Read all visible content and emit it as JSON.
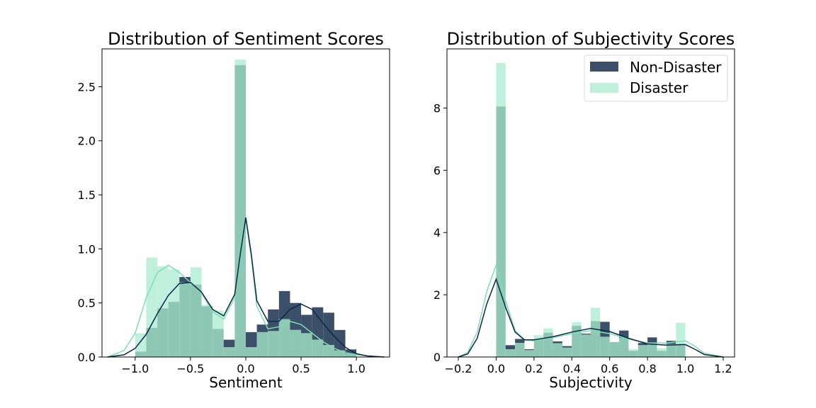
{
  "colors": {
    "non_disaster": "#0a2848",
    "disaster": "#7fdcb4",
    "overlap_fill": "#8ec7b3",
    "legend_non_disaster": "#3b5068",
    "legend_disaster": "#bff0db"
  },
  "chart_data": [
    {
      "type": "histogram",
      "title": "Distribution of Sentiment Scores",
      "xlabel": "Sentiment",
      "ylabel": "",
      "xlim": [
        -1.3,
        1.3
      ],
      "ylim": [
        0,
        2.85
      ],
      "xticks": [
        -1.0,
        -0.5,
        0.0,
        0.5,
        1.0
      ],
      "xtick_labels": [
        "−1.0",
        "−0.5",
        "0.0",
        "0.5",
        "1.0"
      ],
      "yticks": [
        0.0,
        0.5,
        1.0,
        1.5,
        2.0,
        2.5
      ],
      "ytick_labels": [
        "0.0",
        "0.5",
        "1.0",
        "1.5",
        "2.0",
        "2.5"
      ],
      "bin_edges": [
        -1.0,
        -0.9,
        -0.8,
        -0.7,
        -0.6,
        -0.5,
        -0.4,
        -0.3,
        -0.2,
        -0.1,
        0.0,
        0.1,
        0.2,
        0.3,
        0.4,
        0.5,
        0.6,
        0.7,
        0.8,
        0.9,
        1.0
      ],
      "series": [
        {
          "name": "Non-Disaster",
          "values": [
            0.05,
            0.27,
            0.45,
            0.51,
            0.74,
            0.67,
            0.47,
            0.26,
            0.16,
            2.7,
            0.23,
            0.3,
            0.44,
            0.61,
            0.5,
            0.39,
            0.46,
            0.41,
            0.25,
            0.07
          ],
          "kde_x": [
            -1.25,
            -1.1,
            -1.0,
            -0.9,
            -0.8,
            -0.7,
            -0.6,
            -0.5,
            -0.4,
            -0.3,
            -0.2,
            -0.1,
            -0.05,
            0.0,
            0.05,
            0.1,
            0.2,
            0.3,
            0.4,
            0.5,
            0.6,
            0.7,
            0.8,
            0.9,
            1.0,
            1.1,
            1.25
          ],
          "kde_y": [
            0.0,
            0.02,
            0.08,
            0.21,
            0.4,
            0.57,
            0.68,
            0.69,
            0.6,
            0.44,
            0.38,
            0.58,
            0.95,
            1.29,
            0.95,
            0.52,
            0.33,
            0.33,
            0.44,
            0.49,
            0.44,
            0.31,
            0.19,
            0.09,
            0.03,
            0.01,
            0.0
          ]
        },
        {
          "name": "Disaster",
          "values": [
            0.22,
            0.92,
            0.84,
            0.81,
            0.69,
            0.83,
            0.48,
            0.43,
            0.09,
            2.75,
            0.09,
            0.23,
            0.24,
            0.35,
            0.25,
            0.22,
            0.16,
            0.11,
            0.06,
            0.03
          ],
          "kde_x": [
            -1.25,
            -1.1,
            -1.0,
            -0.9,
            -0.8,
            -0.7,
            -0.6,
            -0.5,
            -0.4,
            -0.3,
            -0.2,
            -0.1,
            -0.05,
            0.0,
            0.05,
            0.1,
            0.2,
            0.3,
            0.4,
            0.5,
            0.6,
            0.7,
            0.8,
            0.9,
            1.0,
            1.1,
            1.25
          ],
          "kde_y": [
            0.0,
            0.06,
            0.22,
            0.55,
            0.78,
            0.85,
            0.78,
            0.69,
            0.59,
            0.42,
            0.35,
            0.55,
            0.92,
            1.27,
            0.92,
            0.47,
            0.26,
            0.28,
            0.33,
            0.3,
            0.22,
            0.14,
            0.08,
            0.04,
            0.02,
            0.01,
            0.0
          ]
        }
      ]
    },
    {
      "type": "histogram",
      "title": "Distribution of Subjectivity Scores",
      "xlabel": "Subjectivity",
      "ylabel": "",
      "xlim": [
        -0.26,
        1.26
      ],
      "ylim": [
        0,
        9.9
      ],
      "xticks": [
        -0.2,
        0.0,
        0.2,
        0.4,
        0.6,
        0.8,
        1.0,
        1.2
      ],
      "xtick_labels": [
        "−0.2",
        "0.0",
        "0.2",
        "0.4",
        "0.6",
        "0.8",
        "1.0",
        "1.2"
      ],
      "yticks": [
        0,
        2,
        4,
        6,
        8
      ],
      "ytick_labels": [
        "0",
        "2",
        "4",
        "6",
        "8"
      ],
      "bin_edges": [
        0.0,
        0.05,
        0.1,
        0.15,
        0.2,
        0.25,
        0.3,
        0.35,
        0.4,
        0.45,
        0.5,
        0.55,
        0.6,
        0.65,
        0.7,
        0.75,
        0.8,
        0.85,
        0.9,
        0.95,
        1.0
      ],
      "series": [
        {
          "name": "Non-Disaster",
          "values": [
            8.05,
            0.38,
            0.58,
            0.25,
            0.55,
            0.78,
            0.5,
            0.35,
            1.0,
            0.75,
            1.15,
            1.13,
            0.48,
            0.85,
            0.2,
            0.45,
            0.63,
            0.2,
            0.52,
            0.42
          ],
          "kde_x": [
            -0.2,
            -0.15,
            -0.1,
            -0.05,
            0.0,
            0.05,
            0.1,
            0.15,
            0.2,
            0.3,
            0.4,
            0.5,
            0.6,
            0.7,
            0.8,
            0.9,
            1.0,
            1.05,
            1.1,
            1.2
          ],
          "kde_y": [
            0.0,
            0.1,
            0.6,
            1.7,
            2.5,
            1.6,
            0.8,
            0.55,
            0.55,
            0.65,
            0.8,
            0.92,
            0.82,
            0.6,
            0.42,
            0.38,
            0.4,
            0.25,
            0.08,
            0.0
          ]
        },
        {
          "name": "Disaster",
          "values": [
            9.45,
            0.25,
            0.45,
            0.22,
            0.7,
            0.92,
            0.44,
            0.3,
            1.12,
            0.72,
            1.58,
            0.65,
            0.48,
            0.62,
            0.25,
            0.38,
            0.45,
            0.28,
            0.42,
            1.1
          ],
          "kde_x": [
            -0.2,
            -0.15,
            -0.1,
            -0.05,
            0.0,
            0.05,
            0.1,
            0.15,
            0.2,
            0.3,
            0.4,
            0.5,
            0.6,
            0.7,
            0.8,
            0.9,
            1.0,
            1.05,
            1.1,
            1.2
          ],
          "kde_y": [
            0.0,
            0.15,
            0.8,
            2.1,
            2.95,
            1.8,
            0.85,
            0.55,
            0.52,
            0.62,
            0.75,
            0.85,
            0.75,
            0.58,
            0.45,
            0.45,
            0.52,
            0.35,
            0.12,
            0.0
          ]
        }
      ],
      "legend": {
        "placement": "top-right",
        "entries": [
          "Non-Disaster",
          "Disaster"
        ]
      }
    }
  ]
}
